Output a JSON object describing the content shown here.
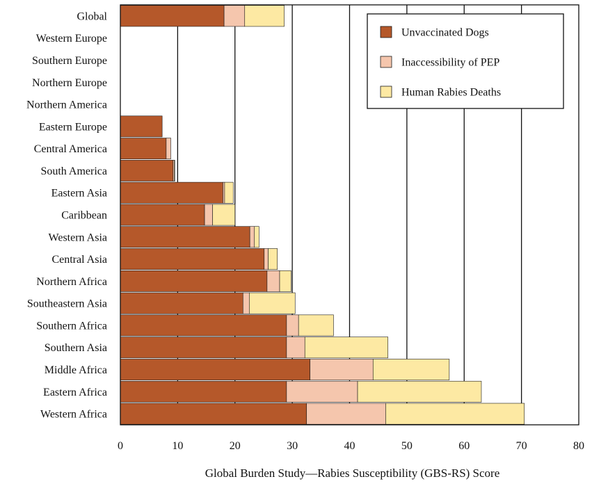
{
  "chart_data": {
    "type": "bar",
    "orientation": "horizontal",
    "stacked": true,
    "categories": [
      "Global",
      "Western Europe",
      "Southern Europe",
      "Northern Europe",
      "Northern America",
      "Eastern Europe",
      "Central America",
      "South America",
      "Eastern Asia",
      "Caribbean",
      "Western Asia",
      "Central Asia",
      "Northern Africa",
      "Southeastern Asia",
      "Southern Africa",
      "Southern Asia",
      "Middle Africa",
      "Eastern Africa",
      "Western Africa"
    ],
    "series": [
      {
        "name": "Unvaccinated Dogs",
        "color": "#b5582a",
        "values": [
          18.1,
          0,
          0,
          0,
          0,
          7.3,
          8.0,
          9.2,
          17.9,
          14.7,
          22.6,
          25.1,
          25.6,
          21.4,
          29.0,
          29.0,
          33.1,
          29.0,
          32.5
        ]
      },
      {
        "name": "Inaccessibility of PEP",
        "color": "#f5c6ad",
        "values": [
          3.6,
          0,
          0,
          0,
          0,
          0,
          0.8,
          0.2,
          0.3,
          1.4,
          0.8,
          0.7,
          2.2,
          1.1,
          2.1,
          3.2,
          11.0,
          12.4,
          13.8
        ]
      },
      {
        "name": "Human Rabies Deaths",
        "color": "#fde9a3",
        "values": [
          6.9,
          0,
          0,
          0,
          0,
          0,
          0,
          0.1,
          1.5,
          3.9,
          0.8,
          1.6,
          2.0,
          8.0,
          6.1,
          14.5,
          13.3,
          21.6,
          24.2
        ]
      }
    ],
    "xlabel": "Global Burden Study—Rabies Susceptibility (GBS-RS) Score",
    "ylabel": "",
    "xlim": [
      0,
      80
    ],
    "xticks": [
      0,
      10,
      20,
      30,
      40,
      50,
      60,
      70,
      80
    ],
    "grid": "vertical",
    "legend_position": "top-right"
  }
}
